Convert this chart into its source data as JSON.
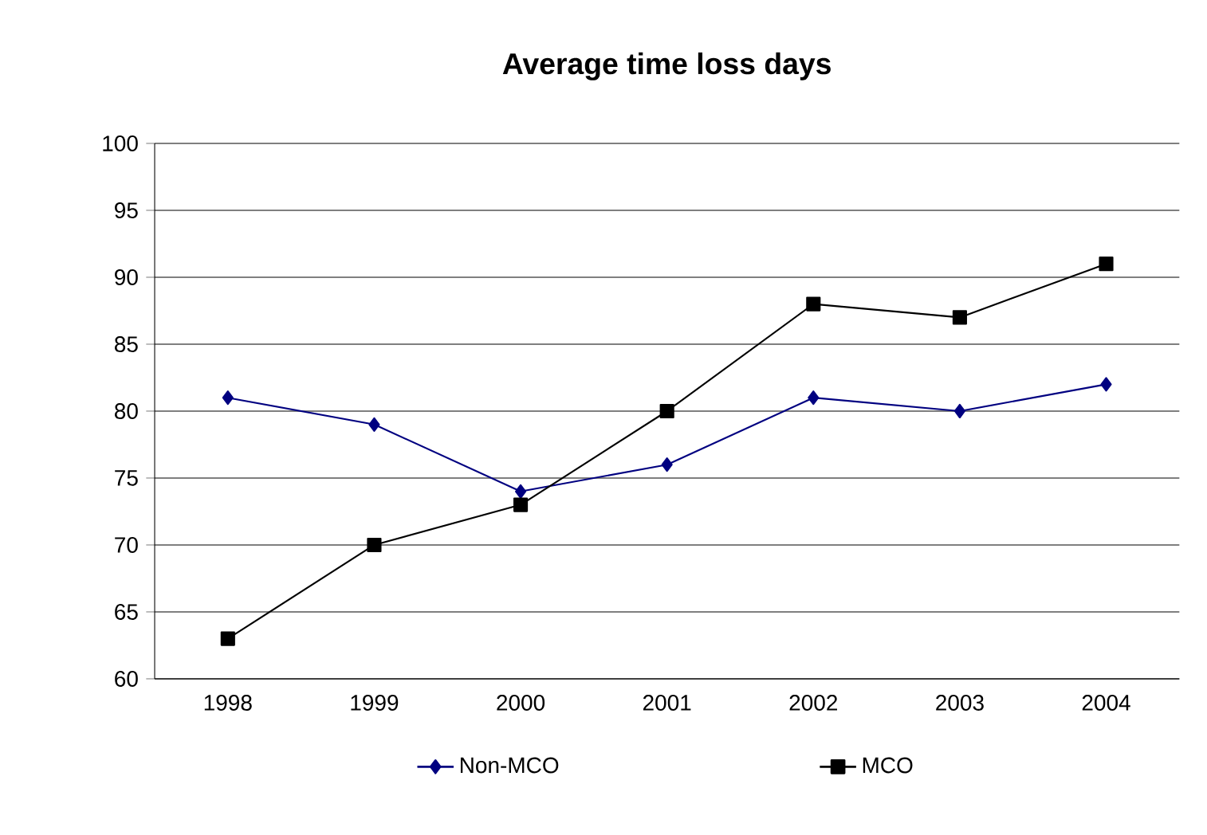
{
  "chart_data": {
    "type": "line",
    "title": "Average time loss days",
    "categories": [
      "1998",
      "1999",
      "2000",
      "2001",
      "2002",
      "2003",
      "2004"
    ],
    "series": [
      {
        "name": "Non-MCO",
        "color": "#000080",
        "marker": "diamond",
        "values": [
          81,
          79,
          74,
          76,
          81,
          80,
          82
        ]
      },
      {
        "name": "MCO",
        "color": "#000000",
        "marker": "square",
        "values": [
          63,
          70,
          73,
          80,
          88,
          87,
          91
        ]
      }
    ],
    "ylim": [
      60,
      100
    ],
    "yticks": [
      60,
      65,
      70,
      75,
      80,
      85,
      90,
      95,
      100
    ],
    "grid": "y",
    "legend": "bottom",
    "line_style": "solid"
  }
}
